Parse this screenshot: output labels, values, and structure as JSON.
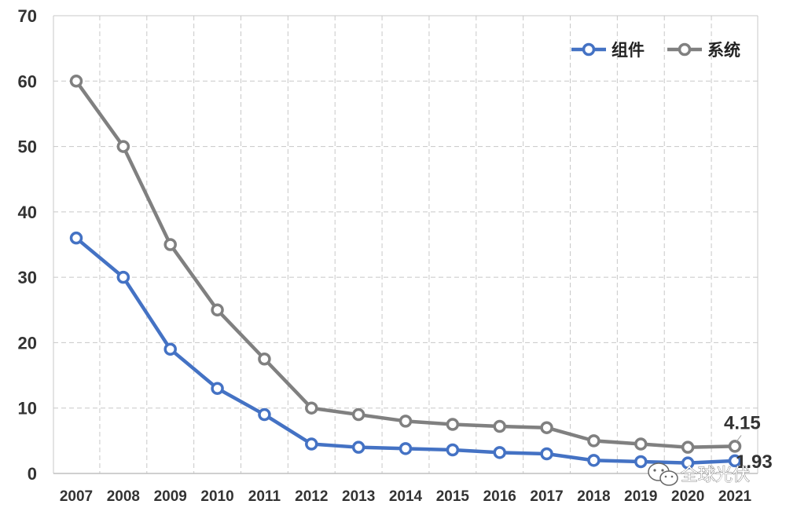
{
  "chart_data": {
    "type": "line",
    "categories": [
      "2007",
      "2008",
      "2009",
      "2010",
      "2011",
      "2012",
      "2013",
      "2014",
      "2015",
      "2016",
      "2017",
      "2018",
      "2019",
      "2020",
      "2021"
    ],
    "series": [
      {
        "name": "组件",
        "color": "#4472C4",
        "values": [
          36,
          30,
          19,
          13,
          9,
          4.5,
          4,
          3.8,
          3.6,
          3.2,
          3,
          2,
          1.8,
          1.6,
          1.93
        ]
      },
      {
        "name": "系统",
        "color": "#808080",
        "values": [
          60,
          50,
          35,
          25,
          17.5,
          10,
          9,
          8,
          7.5,
          7.2,
          7,
          5,
          4.5,
          4,
          4.15
        ]
      }
    ],
    "ylim": [
      0,
      70
    ],
    "yticks": [
      0,
      10,
      20,
      30,
      40,
      50,
      60,
      70
    ],
    "grid": true,
    "legend_position": "top-right",
    "data_labels": [
      {
        "series": "系统",
        "category": "2021",
        "text": "4.15"
      },
      {
        "series": "组件",
        "category": "2021",
        "text": "1.93"
      }
    ]
  },
  "watermark": {
    "text": "全球光伏",
    "icon": "wechat-icon"
  }
}
